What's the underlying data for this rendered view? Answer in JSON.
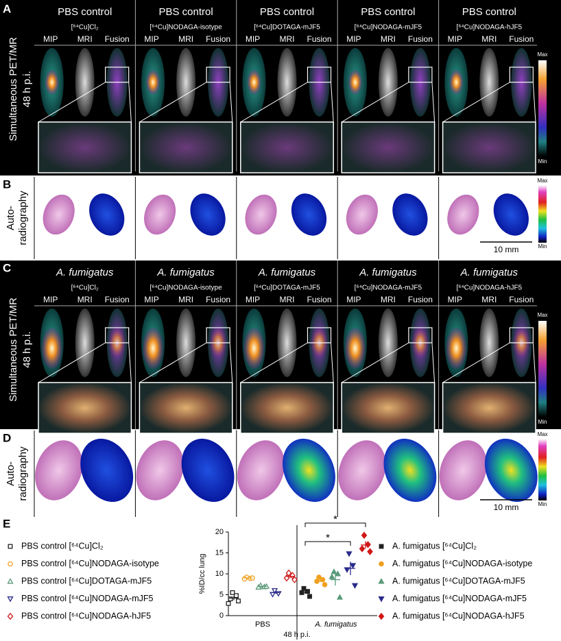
{
  "panel_labels": [
    "A",
    "B",
    "C",
    "D",
    "E"
  ],
  "pet_mr": {
    "side_label": "Simultaneous PET/MR",
    "timepoint": "48 h p.i.",
    "view_labels": [
      "MIP",
      "MRI",
      "Fusion"
    ],
    "scale_max": "Max",
    "scale_min": "Min"
  },
  "autoradiography": {
    "side_label": [
      "Auto-",
      "radiography"
    ],
    "scale_bar": "10 mm",
    "scale_max": "Max",
    "scale_min": "Min"
  },
  "panel_a": {
    "columns": [
      {
        "group": "PBS control",
        "tracer": "[⁶⁴Cu]Cl₂"
      },
      {
        "group": "PBS control",
        "tracer": "[⁶⁴Cu]NODAGA-isotype"
      },
      {
        "group": "PBS control",
        "tracer": "[⁶⁴Cu]DOTAGA-mJF5"
      },
      {
        "group": "PBS control",
        "tracer": "[⁶⁴Cu]NODAGA-mJF5"
      },
      {
        "group": "PBS control",
        "tracer": "[⁶⁴Cu]NODAGA-hJF5"
      }
    ]
  },
  "panel_c": {
    "columns": [
      {
        "group": "A. fumigatus",
        "tracer": "[⁶⁴Cu]Cl₂"
      },
      {
        "group": "A. fumigatus",
        "tracer": "[⁶⁴Cu]NODAGA-isotype"
      },
      {
        "group": "A. fumigatus",
        "tracer": "[⁶⁴Cu]DOTAGA-mJF5"
      },
      {
        "group": "A. fumigatus",
        "tracer": "[⁶⁴Cu]NODAGA-mJF5"
      },
      {
        "group": "A. fumigatus",
        "tracer": "[⁶⁴Cu]NODAGA-hJF5"
      }
    ]
  },
  "chart_data": {
    "type": "scatter",
    "y_label": "%ID/cc lung",
    "x_label": "48 h p.i.",
    "groups": [
      "PBS",
      "A. fumigatus"
    ],
    "ylim": [
      0,
      20
    ],
    "yticks": [
      0,
      5,
      10,
      15,
      20
    ],
    "significance": [
      "*",
      "*"
    ],
    "series": [
      {
        "name": "PBS control [⁶⁴Cu]Cl₂",
        "color": "#222222",
        "marker": "square",
        "filled": false,
        "group": 0,
        "values": [
          5.5,
          4.8,
          4.0,
          3.5,
          2.9
        ],
        "mean": 4.2,
        "error": 0.5
      },
      {
        "name": "PBS control [⁶⁴Cu]NODAGA-isotype",
        "color": "#f0a020",
        "marker": "circle",
        "filled": false,
        "group": 0,
        "values": [
          9.2,
          8.9,
          8.8,
          9.0
        ],
        "mean": 9.0,
        "error": 0.1
      },
      {
        "name": "PBS control [⁶⁴Cu]DOTAGA-mJF5",
        "color": "#5a9a7a",
        "marker": "triangle",
        "filled": false,
        "group": 0,
        "values": [
          7.2,
          6.9,
          6.8,
          7.0
        ],
        "mean": 7.0,
        "error": 0.1
      },
      {
        "name": "PBS control [⁶⁴Cu]NODAGA-mJF5",
        "color": "#2a2a8a",
        "marker": "down-triangle",
        "filled": false,
        "group": 0,
        "values": [
          6.0,
          5.3,
          5.1
        ],
        "mean": 5.5,
        "error": 0.3
      },
      {
        "name": "PBS control [⁶⁴Cu]NODAGA-hJF5",
        "color": "#d01818",
        "marker": "diamond",
        "filled": false,
        "group": 0,
        "values": [
          10.2,
          9.6,
          9.0,
          8.6
        ],
        "mean": 9.4,
        "error": 0.4
      },
      {
        "name": "A. fumigatus [⁶⁴Cu]Cl₂",
        "color": "#222222",
        "marker": "square",
        "filled": true,
        "group": 1,
        "values": [
          6.5,
          5.8,
          5.5,
          4.6
        ],
        "mean": 5.6,
        "error": 0.4
      },
      {
        "name": "A. fumigatus [⁶⁴Cu]NODAGA-isotype",
        "color": "#f0a020",
        "marker": "circle",
        "filled": true,
        "group": 1,
        "values": [
          9.2,
          8.6,
          8.2,
          7.4
        ],
        "mean": 8.4,
        "error": 0.4
      },
      {
        "name": "A. fumigatus [⁶⁴Cu]DOTAGA-mJF5",
        "color": "#5a9a7a",
        "marker": "triangle",
        "filled": true,
        "group": 1,
        "values": [
          10.5,
          10.0,
          9.3,
          4.4
        ],
        "mean": 8.6,
        "error": 1.4
      },
      {
        "name": "A. fumigatus [⁶⁴Cu]NODAGA-mJF5",
        "color": "#2a2a8a",
        "marker": "down-triangle",
        "filled": true,
        "group": 1,
        "values": [
          14.8,
          12.0,
          11.0,
          7.2
        ],
        "mean": 11.3,
        "error": 1.6
      },
      {
        "name": "A. fumigatus [⁶⁴Cu]NODAGA-hJF5",
        "color": "#d01818",
        "marker": "diamond",
        "filled": true,
        "group": 1,
        "values": [
          19.2,
          17.0,
          16.0,
          15.3
        ],
        "mean": 16.9,
        "error": 0.9
      }
    ]
  }
}
